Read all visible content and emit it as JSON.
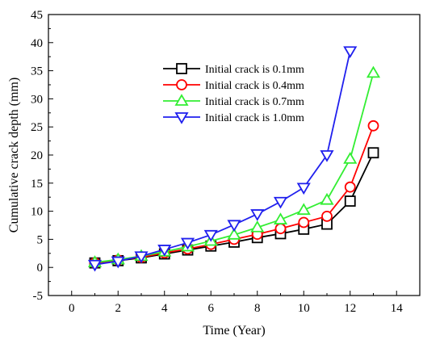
{
  "chart_data": {
    "type": "line",
    "title": "",
    "xlabel": "Time (Year)",
    "ylabel": "Cumulative crack depth (mm)",
    "xlim": [
      -1,
      15
    ],
    "ylim": [
      -5,
      45
    ],
    "xticks": [
      0,
      2,
      4,
      6,
      8,
      10,
      12,
      14
    ],
    "yticks": [
      -5,
      0,
      5,
      10,
      15,
      20,
      25,
      30,
      35,
      40,
      45
    ],
    "grid": false,
    "legend_position": "top-center",
    "series": [
      {
        "name": "Initial crack is 0.1mm",
        "color": "#000000",
        "marker": "square",
        "x": [
          1,
          2,
          3,
          4,
          5,
          6,
          7,
          8,
          9,
          10,
          11,
          12,
          13
        ],
        "y": [
          0.8,
          1.2,
          1.7,
          2.4,
          3.1,
          3.8,
          4.5,
          5.3,
          6.0,
          6.8,
          7.7,
          11.8,
          20.4
        ]
      },
      {
        "name": "Initial crack is 0.4mm",
        "color": "#ff0000",
        "marker": "circle",
        "x": [
          1,
          2,
          3,
          4,
          5,
          6,
          7,
          8,
          9,
          10,
          11,
          12,
          13
        ],
        "y": [
          0.8,
          1.3,
          1.8,
          2.6,
          3.3,
          4.1,
          5.0,
          5.9,
          6.9,
          8.0,
          9.1,
          14.3,
          25.2
        ]
      },
      {
        "name": "Initial crack is 0.7mm",
        "color": "#33ee33",
        "marker": "triangle-up",
        "x": [
          1,
          2,
          3,
          4,
          5,
          6,
          7,
          8,
          9,
          10,
          11,
          12,
          13
        ],
        "y": [
          0.9,
          1.4,
          2.0,
          2.8,
          3.7,
          4.7,
          5.8,
          7.1,
          8.5,
          10.2,
          12.0,
          19.3,
          34.6
        ]
      },
      {
        "name": "Initial crack is 1.0mm",
        "color": "#2020ee",
        "marker": "triangle-down",
        "x": [
          1,
          2,
          3,
          4,
          5,
          6,
          7,
          8,
          9,
          10,
          11,
          12
        ],
        "y": [
          0.5,
          1.1,
          2.0,
          3.2,
          4.4,
          5.8,
          7.6,
          9.5,
          11.7,
          14.2,
          20.0,
          38.5
        ]
      }
    ]
  }
}
